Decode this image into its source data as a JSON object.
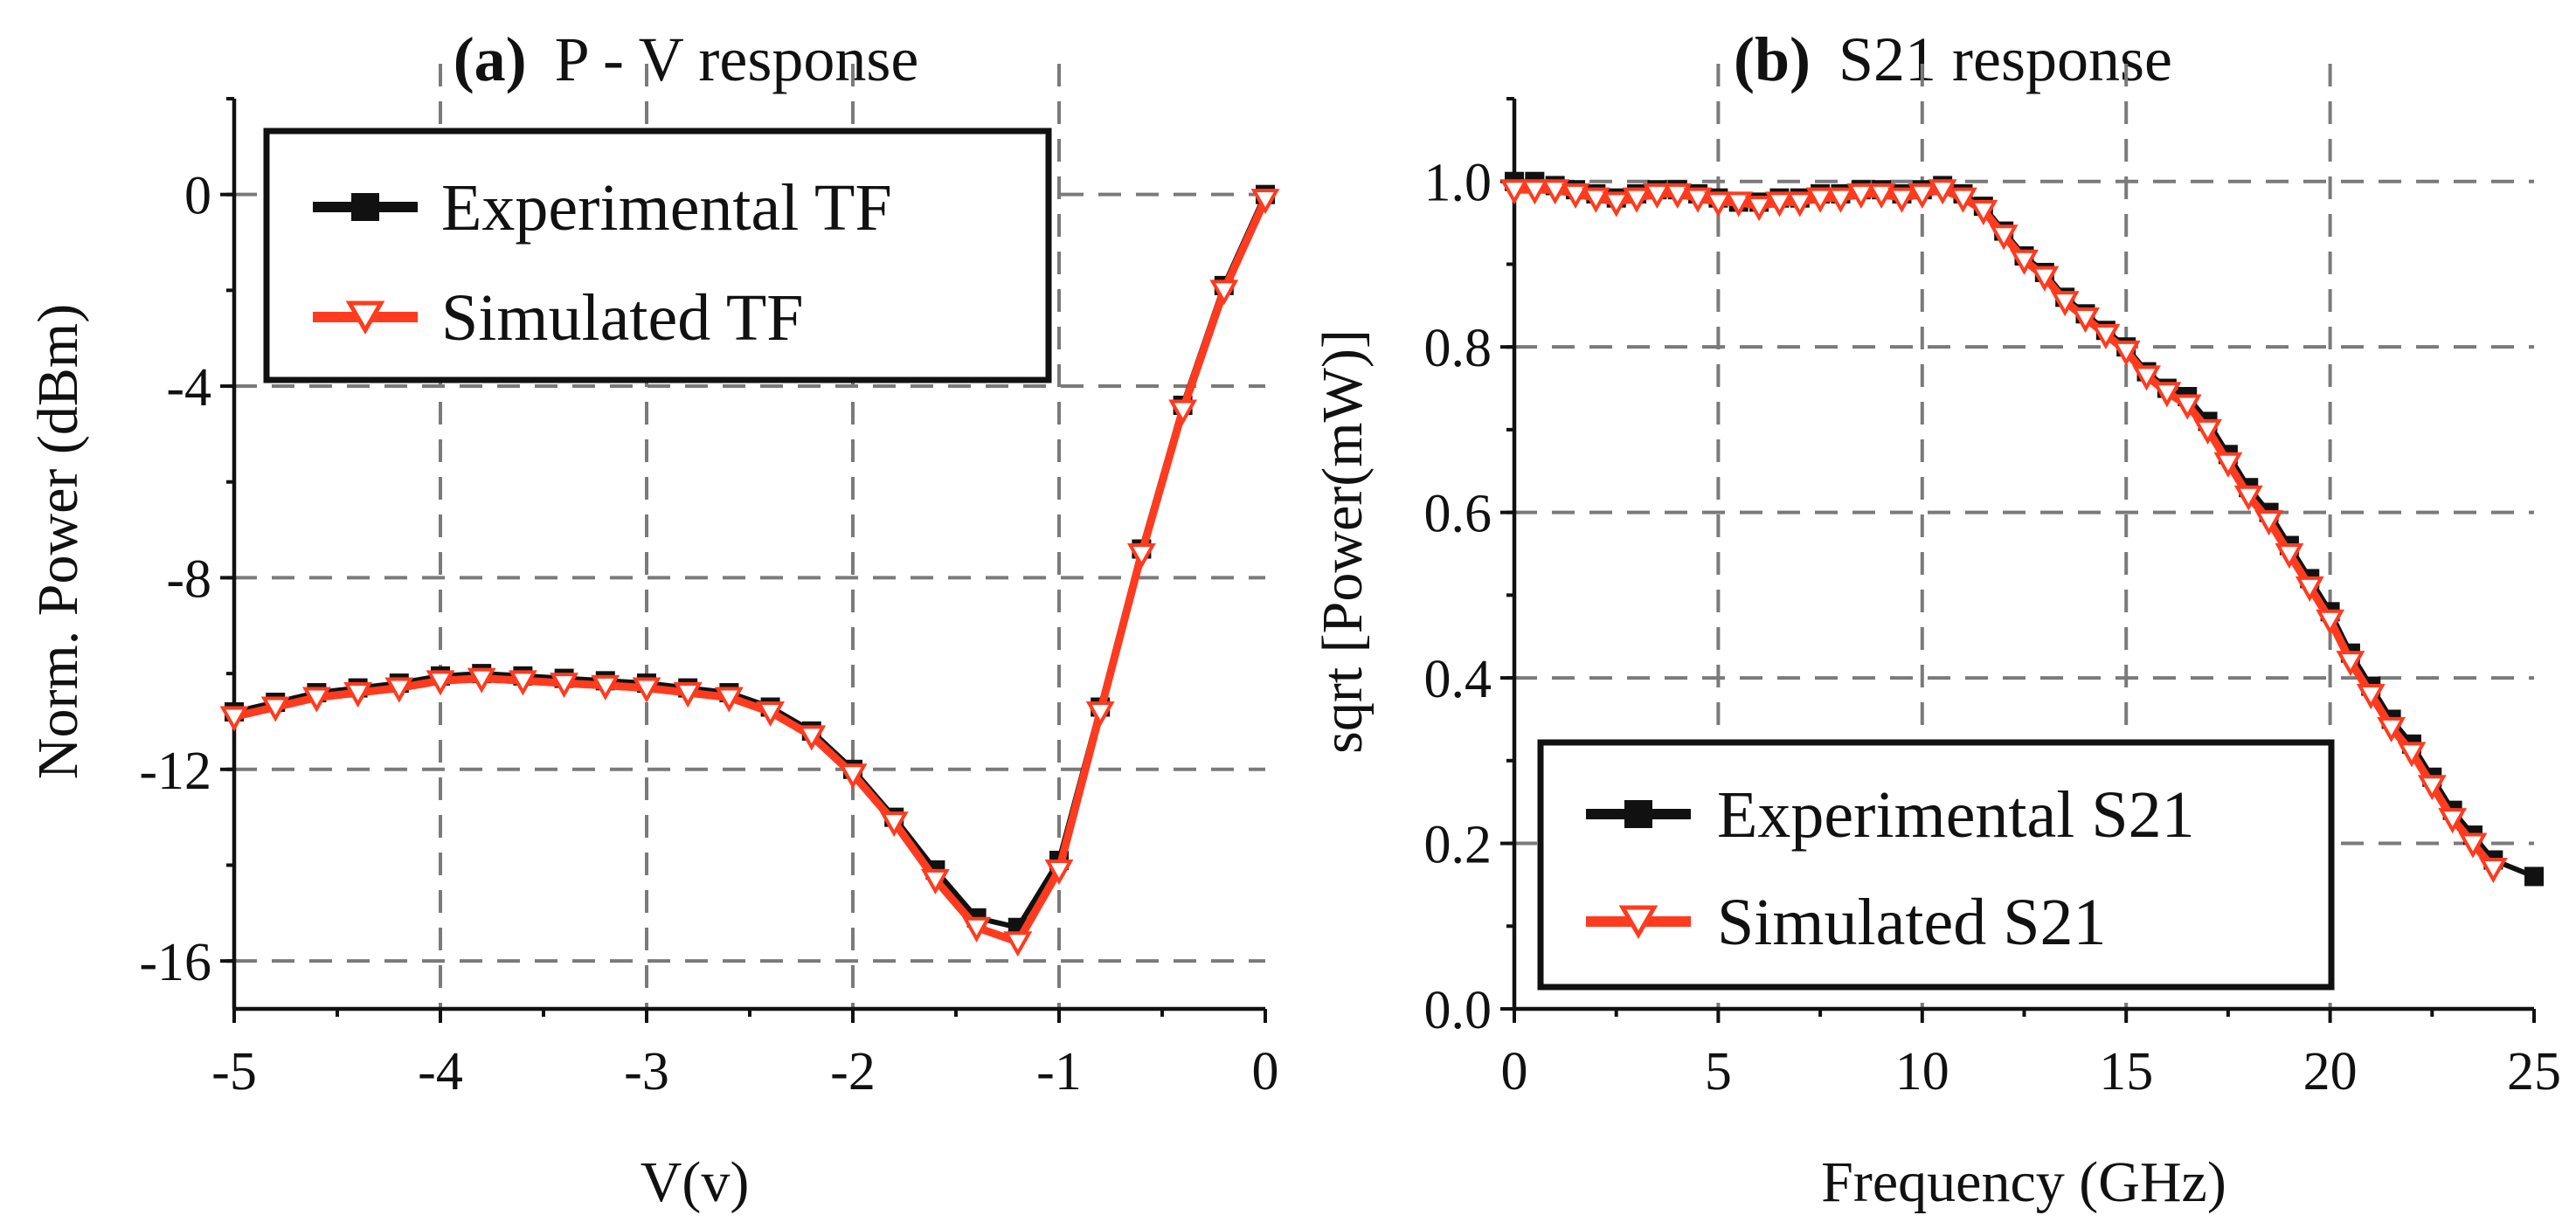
{
  "colors": {
    "experimental": "#111111",
    "simulated": "#ff3b1f",
    "grid": "#7a7a7a",
    "background": "#ffffff"
  },
  "chart_data": [
    {
      "type": "line",
      "title_prefix": "(a)",
      "title_rest": "P - V response",
      "xlabel": "V(v)",
      "ylabel": "Norm. Power (dBm)",
      "xlim": [
        -5,
        0
      ],
      "ylim": [
        -17,
        2
      ],
      "xticks": [
        -5,
        -4,
        -3,
        -2,
        -1,
        0
      ],
      "xtick_labels": [
        "-5",
        "-4",
        "-3",
        "-2",
        "-1",
        "0"
      ],
      "yticks": [
        0,
        -4,
        -8,
        -12,
        -16
      ],
      "ytick_labels": [
        "0",
        "-4",
        "-8",
        "-12",
        "-16"
      ],
      "grid": true,
      "legend_position": "top-left",
      "series": [
        {
          "name": "Experimental TF",
          "marker": "square",
          "x": [
            -5,
            -4.8,
            -4.6,
            -4.4,
            -4.2,
            -4.0,
            -3.8,
            -3.6,
            -3.4,
            -3.2,
            -3.0,
            -2.8,
            -2.6,
            -2.4,
            -2.2,
            -2.0,
            -1.8,
            -1.6,
            -1.4,
            -1.2,
            -1.0,
            -0.8,
            -0.6,
            -0.4,
            -0.2,
            0.0
          ],
          "values": [
            -10.8,
            -10.6,
            -10.4,
            -10.3,
            -10.2,
            -10.05,
            -10.0,
            -10.05,
            -10.1,
            -10.15,
            -10.2,
            -10.3,
            -10.4,
            -10.7,
            -11.2,
            -12.0,
            -13.0,
            -14.1,
            -15.1,
            -15.3,
            -13.9,
            -10.7,
            -7.4,
            -4.4,
            -1.9,
            0.0
          ]
        },
        {
          "name": "Simulated TF",
          "marker": "triangle-down",
          "x": [
            -5,
            -4.8,
            -4.6,
            -4.4,
            -4.2,
            -4.0,
            -3.8,
            -3.6,
            -3.4,
            -3.2,
            -3.0,
            -2.8,
            -2.6,
            -2.4,
            -2.2,
            -2.0,
            -1.8,
            -1.6,
            -1.4,
            -1.2,
            -1.0,
            -0.8,
            -0.6,
            -0.4,
            -0.2,
            0.0
          ],
          "values": [
            -10.9,
            -10.7,
            -10.5,
            -10.4,
            -10.3,
            -10.15,
            -10.1,
            -10.15,
            -10.2,
            -10.25,
            -10.3,
            -10.4,
            -10.5,
            -10.8,
            -11.3,
            -12.1,
            -13.1,
            -14.3,
            -15.3,
            -15.6,
            -14.1,
            -10.8,
            -7.5,
            -4.5,
            -2.0,
            -0.1
          ]
        }
      ]
    },
    {
      "type": "line",
      "title_prefix": "(b)",
      "title_rest": "S21 response",
      "xlabel": "Frequency (GHz)",
      "ylabel": "sqrt [Power(mW)]",
      "xlim": [
        0,
        25
      ],
      "ylim": [
        0,
        1.1
      ],
      "xticks": [
        0,
        5,
        10,
        15,
        20,
        25
      ],
      "xtick_labels": [
        "0",
        "5",
        "10",
        "15",
        "20",
        "25"
      ],
      "yticks": [
        0,
        0.2,
        0.4,
        0.6,
        0.8,
        1.0
      ],
      "ytick_labels": [
        "0.0",
        "0.2",
        "0.4",
        "0.6",
        "0.8",
        "1.0"
      ],
      "grid": true,
      "legend_position": "bottom-left",
      "series": [
        {
          "name": "Experimental S21",
          "marker": "square",
          "x": [
            0,
            0.5,
            1,
            1.5,
            2,
            2.5,
            3,
            3.5,
            4,
            4.5,
            5,
            5.5,
            6,
            6.5,
            7,
            7.5,
            8,
            8.5,
            9,
            9.5,
            10,
            10.5,
            11,
            11.5,
            12,
            12.5,
            13,
            13.5,
            14,
            14.5,
            15,
            15.5,
            16,
            16.5,
            17,
            17.5,
            18,
            18.5,
            19,
            19.5,
            20,
            20.5,
            21,
            21.5,
            22,
            22.5,
            23,
            23.5,
            24,
            25
          ],
          "values": [
            1.0,
            1.0,
            0.995,
            0.99,
            0.985,
            0.98,
            0.985,
            0.99,
            0.99,
            0.985,
            0.98,
            0.975,
            0.975,
            0.98,
            0.98,
            0.985,
            0.985,
            0.99,
            0.99,
            0.985,
            0.99,
            0.995,
            0.985,
            0.97,
            0.94,
            0.91,
            0.89,
            0.86,
            0.84,
            0.82,
            0.8,
            0.77,
            0.75,
            0.74,
            0.71,
            0.67,
            0.63,
            0.6,
            0.56,
            0.52,
            0.48,
            0.43,
            0.39,
            0.35,
            0.32,
            0.28,
            0.24,
            0.21,
            0.18,
            0.16
          ]
        },
        {
          "name": "Simulated S21",
          "marker": "triangle-down",
          "x": [
            0,
            0.5,
            1,
            1.5,
            2,
            2.5,
            3,
            3.5,
            4,
            4.5,
            5,
            5.5,
            6,
            6.5,
            7,
            7.5,
            8,
            8.5,
            9,
            9.5,
            10,
            10.5,
            11,
            11.5,
            12,
            12.5,
            13,
            13.5,
            14,
            14.5,
            15,
            15.5,
            16,
            16.5,
            17,
            17.5,
            18,
            18.5,
            19,
            19.5,
            20,
            20.5,
            21,
            21.5,
            22,
            22.5,
            23,
            23.5,
            24
          ],
          "values": [
            0.99,
            0.99,
            0.99,
            0.985,
            0.98,
            0.975,
            0.98,
            0.985,
            0.985,
            0.98,
            0.975,
            0.975,
            0.97,
            0.975,
            0.975,
            0.98,
            0.98,
            0.985,
            0.985,
            0.98,
            0.985,
            0.99,
            0.98,
            0.965,
            0.935,
            0.905,
            0.885,
            0.855,
            0.835,
            0.815,
            0.795,
            0.765,
            0.745,
            0.73,
            0.7,
            0.66,
            0.62,
            0.59,
            0.55,
            0.51,
            0.47,
            0.42,
            0.38,
            0.34,
            0.31,
            0.27,
            0.23,
            0.2,
            0.17
          ]
        }
      ]
    }
  ]
}
